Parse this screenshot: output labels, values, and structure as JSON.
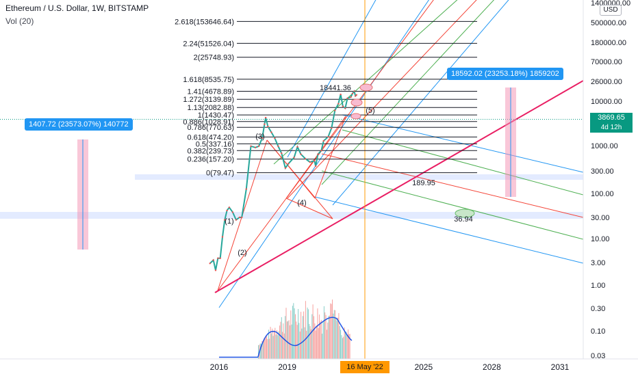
{
  "header": {
    "title": "Ethereum / U.S. Dollar, 1W, BITSTAMP",
    "indicator": "Vol (20)",
    "currency_button": "USD"
  },
  "chart_data": {
    "type": "line",
    "title": "Ethereum / U.S. Dollar, 1W, BITSTAMP",
    "yscale": "log",
    "grid": false,
    "x_ticks": [
      "2016",
      "2019",
      "2022",
      "2025",
      "2028",
      "2031"
    ],
    "y_ticks": [
      "1400000.00",
      "500000.00",
      "180000.00",
      "70000.00",
      "26000.00",
      "10000.00",
      "3869.65",
      "1000.00",
      "300.00",
      "100.00",
      "30.00",
      "10.00",
      "3.00",
      "1.00",
      "0.30",
      "0.10",
      "0.03"
    ],
    "current_price": "3869.65",
    "countdown": "4d 12h",
    "cursor_date": "16 May '22",
    "fib_levels": [
      {
        "label": "2.618(153646.64)",
        "value": 153646.64
      },
      {
        "label": "2.24(51526.04)",
        "value": 51526.04
      },
      {
        "label": "2(25748.93)",
        "value": 25748.93
      },
      {
        "label": "1.618(8535.75)",
        "value": 8535.75
      },
      {
        "label": "1.41(4678.89)",
        "value": 4678.89
      },
      {
        "label": "1.272(3139.89)",
        "value": 3139.89
      },
      {
        "label": "1.13(2082.88)",
        "value": 2082.88
      },
      {
        "label": "1(1430.47)",
        "value": 1430.47
      },
      {
        "label": "0.886(1028.91)",
        "value": 1028.91
      },
      {
        "label": "0.786(770.63)",
        "value": 770.63
      },
      {
        "label": "0.618(474.20)",
        "value": 474.2
      },
      {
        "label": "0.5(337.16)",
        "value": 337.16
      },
      {
        "label": "0.382(239.73)",
        "value": 239.73
      },
      {
        "label": "0.236(157.20)",
        "value": 157.2
      },
      {
        "label": "0(79.47)",
        "value": 79.47
      }
    ],
    "wave_labels": [
      "(1)",
      "(2)",
      "(3)",
      "(4)",
      "(5)"
    ],
    "annotations": [
      "18441.36",
      "189.95",
      "36.94"
    ],
    "measure_left": "1407.72 (23573.07%) 140772",
    "measure_right": "18592.02 (23253.18%) 1859202",
    "price_path": [
      [
        "2015.6",
        0.85
      ],
      [
        "2015.75",
        1.0
      ],
      [
        "2015.85",
        0.6
      ],
      [
        "2015.95",
        1.1
      ],
      [
        "2016.05",
        1.1
      ],
      [
        "2016.15",
        3.2
      ],
      [
        "2016.25",
        7.5
      ],
      [
        "2016.35",
        12.0
      ],
      [
        "2016.45",
        14.0
      ],
      [
        "2016.6",
        11.0
      ],
      [
        "2016.75",
        7.5
      ],
      [
        "2016.9",
        8.5
      ],
      [
        "2017.0",
        8.5
      ],
      [
        "2017.2",
        35
      ],
      [
        "2017.4",
        300
      ],
      [
        "2017.6",
        280
      ],
      [
        "2017.75",
        300
      ],
      [
        "2017.9",
        450
      ],
      [
        "2018.0",
        900
      ],
      [
        "2018.05",
        1250
      ],
      [
        "2018.15",
        800
      ],
      [
        "2018.3",
        600
      ],
      [
        "2018.45",
        450
      ],
      [
        "2018.6",
        300
      ],
      [
        "2018.75",
        210
      ],
      [
        "2018.92",
        100
      ],
      [
        "2019.05",
        125
      ],
      [
        "2019.3",
        170
      ],
      [
        "2019.45",
        290
      ],
      [
        "2019.6",
        200
      ],
      [
        "2019.8",
        160
      ],
      [
        "2020.0",
        135
      ],
      [
        "2020.2",
        145
      ],
      [
        "2020.25",
        110
      ],
      [
        "2020.35",
        200
      ],
      [
        "2020.5",
        240
      ],
      [
        "2020.6",
        390
      ],
      [
        "2020.8",
        480
      ],
      [
        "2020.95",
        740
      ],
      [
        "2021.1",
        1800
      ],
      [
        "2021.25",
        2500
      ],
      [
        "2021.35",
        4000
      ],
      [
        "2021.45",
        2200
      ],
      [
        "2021.55",
        2000
      ],
      [
        "2021.65",
        3300
      ],
      [
        "2021.8",
        3500
      ],
      [
        "2021.87",
        4200
      ],
      [
        "2021.95",
        4700
      ],
      [
        "2022.0",
        3700
      ],
      [
        "2022.05",
        3900
      ]
    ]
  }
}
